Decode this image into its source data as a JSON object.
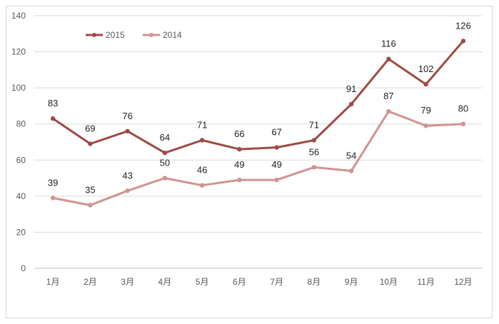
{
  "chart_data": {
    "type": "line",
    "categories": [
      "1月",
      "2月",
      "3月",
      "4月",
      "5月",
      "6月",
      "7月",
      "8月",
      "9月",
      "10月",
      "11月",
      "12月"
    ],
    "series": [
      {
        "name": "2015",
        "color": "#9e4a45",
        "values": [
          83,
          69,
          76,
          64,
          71,
          66,
          67,
          71,
          91,
          116,
          102,
          126
        ]
      },
      {
        "name": "2014",
        "color": "#cf9490",
        "values": [
          39,
          35,
          43,
          50,
          46,
          49,
          49,
          56,
          54,
          87,
          79,
          80
        ]
      }
    ],
    "ylim": [
      0,
      140
    ],
    "yticks": [
      0,
      20,
      40,
      60,
      80,
      100,
      120,
      140
    ],
    "grid": true,
    "legend": "top-left"
  }
}
